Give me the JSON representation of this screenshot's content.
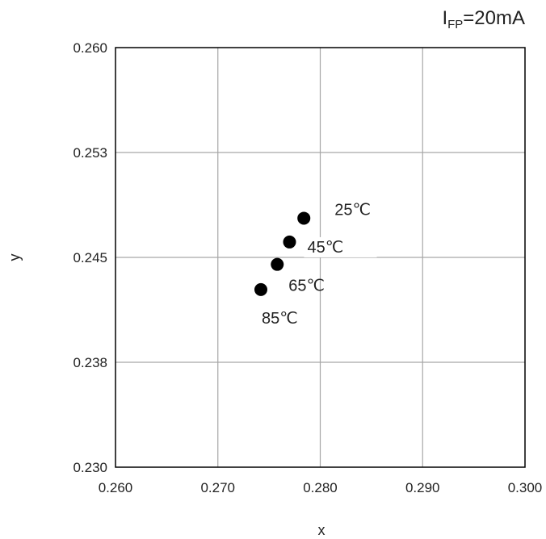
{
  "chart_data": {
    "type": "scatter",
    "title": "",
    "annotation": {
      "main": "I",
      "subscript": "FP",
      "suffix": "=20mA"
    },
    "xlabel": "x",
    "ylabel": "y",
    "xlim": [
      0.26,
      0.3
    ],
    "ylim": [
      0.23,
      0.26
    ],
    "xticks": [
      0.26,
      0.27,
      0.28,
      0.29,
      0.3
    ],
    "xtick_labels": [
      "0.260",
      "0.270",
      "0.280",
      "0.290",
      "0.300"
    ],
    "yticks": [
      0.23,
      0.2375,
      0.245,
      0.2525,
      0.26
    ],
    "ytick_labels": [
      "0.230",
      "0.238",
      "0.245",
      "0.253",
      "0.260"
    ],
    "grid": true,
    "legend": "none",
    "point_color": "#000000",
    "points": [
      {
        "x": 0.2784,
        "y": 0.2478,
        "label": "25℃"
      },
      {
        "x": 0.277,
        "y": 0.2461,
        "label": "45℃"
      },
      {
        "x": 0.2758,
        "y": 0.2445,
        "label": "65℃"
      },
      {
        "x": 0.2742,
        "y": 0.2427,
        "label": "85℃"
      }
    ]
  }
}
